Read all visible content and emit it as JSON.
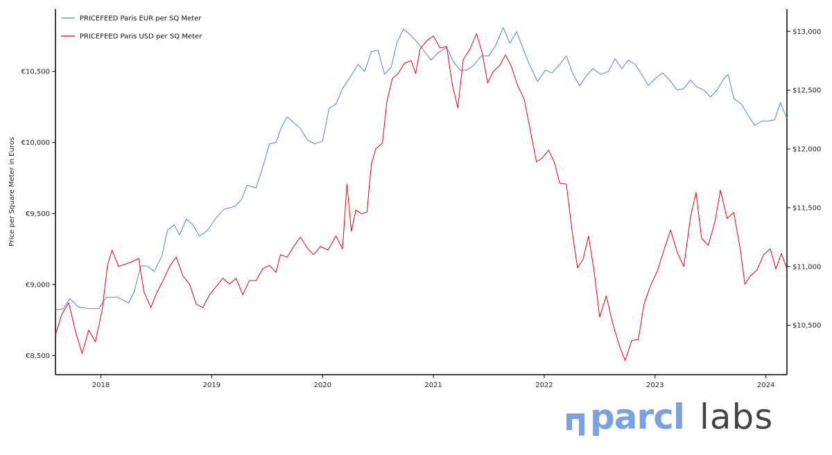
{
  "chart_data": {
    "type": "line",
    "title": "",
    "xlabel": "",
    "ylabel": "Price per Square Meter in Euros",
    "y2label": "",
    "xlim": [
      2017.59,
      2024.19
    ],
    "ylim": [
      8365,
      10940
    ],
    "y2lim": [
      10080,
      13190
    ],
    "x_ticks": [
      {
        "x": 2018,
        "label": "2018"
      },
      {
        "x": 2019,
        "label": "2019"
      },
      {
        "x": 2020,
        "label": "2020"
      },
      {
        "x": 2021,
        "label": "2021"
      },
      {
        "x": 2022,
        "label": "2022"
      },
      {
        "x": 2023,
        "label": "2023"
      },
      {
        "x": 2024,
        "label": "2024"
      }
    ],
    "y_ticks": [
      {
        "v": 8500,
        "label": "€8,500"
      },
      {
        "v": 9000,
        "label": "€9,000"
      },
      {
        "v": 9500,
        "label": "€9,500"
      },
      {
        "v": 10000,
        "label": "€10,000"
      },
      {
        "v": 10500,
        "label": "€10,500"
      }
    ],
    "y2_ticks": [
      {
        "v": 10500,
        "label": "$10,500"
      },
      {
        "v": 11000,
        "label": "$11,000"
      },
      {
        "v": 11500,
        "label": "$11,500"
      },
      {
        "v": 12000,
        "label": "$12,000"
      },
      {
        "v": 12500,
        "label": "$12,500"
      },
      {
        "v": 13000,
        "label": "$13,000"
      }
    ],
    "legend_position": "top-left",
    "grid": false,
    "series": [
      {
        "name": "PRICEFEED Paris EUR per SQ Meter",
        "axis": "left",
        "color": "#4a86d1",
        "points": [
          [
            2017.59,
            8820
          ],
          [
            2017.66,
            8830
          ],
          [
            2017.72,
            8900
          ],
          [
            2017.8,
            8840
          ],
          [
            2017.9,
            8830
          ],
          [
            2017.98,
            8830
          ],
          [
            2018.05,
            8910
          ],
          [
            2018.15,
            8910
          ],
          [
            2018.25,
            8870
          ],
          [
            2018.3,
            8950
          ],
          [
            2018.36,
            9130
          ],
          [
            2018.42,
            9130
          ],
          [
            2018.48,
            9090
          ],
          [
            2018.55,
            9200
          ],
          [
            2018.6,
            9380
          ],
          [
            2018.66,
            9420
          ],
          [
            2018.71,
            9350
          ],
          [
            2018.77,
            9460
          ],
          [
            2018.83,
            9420
          ],
          [
            2018.89,
            9340
          ],
          [
            2018.96,
            9380
          ],
          [
            2019.04,
            9470
          ],
          [
            2019.11,
            9530
          ],
          [
            2019.21,
            9550
          ],
          [
            2019.27,
            9600
          ],
          [
            2019.32,
            9700
          ],
          [
            2019.4,
            9680
          ],
          [
            2019.47,
            9850
          ],
          [
            2019.52,
            9990
          ],
          [
            2019.58,
            10000
          ],
          [
            2019.63,
            10110
          ],
          [
            2019.68,
            10180
          ],
          [
            2019.74,
            10140
          ],
          [
            2019.8,
            10100
          ],
          [
            2019.86,
            10020
          ],
          [
            2019.93,
            9990
          ],
          [
            2020.0,
            10010
          ],
          [
            2020.06,
            10240
          ],
          [
            2020.12,
            10270
          ],
          [
            2020.18,
            10380
          ],
          [
            2020.25,
            10460
          ],
          [
            2020.32,
            10550
          ],
          [
            2020.38,
            10500
          ],
          [
            2020.44,
            10640
          ],
          [
            2020.5,
            10650
          ],
          [
            2020.56,
            10480
          ],
          [
            2020.62,
            10530
          ],
          [
            2020.67,
            10700
          ],
          [
            2020.73,
            10800
          ],
          [
            2020.79,
            10760
          ],
          [
            2020.86,
            10700
          ],
          [
            2020.92,
            10640
          ],
          [
            2020.98,
            10580
          ],
          [
            2021.04,
            10630
          ],
          [
            2021.12,
            10670
          ],
          [
            2021.18,
            10570
          ],
          [
            2021.24,
            10510
          ],
          [
            2021.3,
            10510
          ],
          [
            2021.36,
            10540
          ],
          [
            2021.43,
            10610
          ],
          [
            2021.5,
            10610
          ],
          [
            2021.56,
            10680
          ],
          [
            2021.63,
            10810
          ],
          [
            2021.69,
            10700
          ],
          [
            2021.75,
            10780
          ],
          [
            2021.8,
            10680
          ],
          [
            2021.86,
            10560
          ],
          [
            2021.94,
            10430
          ],
          [
            2022.01,
            10510
          ],
          [
            2022.07,
            10490
          ],
          [
            2022.14,
            10550
          ],
          [
            2022.2,
            10610
          ],
          [
            2022.26,
            10480
          ],
          [
            2022.32,
            10400
          ],
          [
            2022.38,
            10470
          ],
          [
            2022.44,
            10520
          ],
          [
            2022.51,
            10480
          ],
          [
            2022.58,
            10500
          ],
          [
            2022.64,
            10590
          ],
          [
            2022.7,
            10520
          ],
          [
            2022.76,
            10580
          ],
          [
            2022.82,
            10550
          ],
          [
            2022.88,
            10480
          ],
          [
            2022.94,
            10400
          ],
          [
            2023.0,
            10450
          ],
          [
            2023.07,
            10490
          ],
          [
            2023.13,
            10440
          ],
          [
            2023.2,
            10370
          ],
          [
            2023.26,
            10380
          ],
          [
            2023.32,
            10440
          ],
          [
            2023.38,
            10390
          ],
          [
            2023.44,
            10370
          ],
          [
            2023.5,
            10320
          ],
          [
            2023.56,
            10370
          ],
          [
            2023.62,
            10450
          ],
          [
            2023.66,
            10480
          ],
          [
            2023.71,
            10310
          ],
          [
            2023.78,
            10270
          ],
          [
            2023.84,
            10190
          ],
          [
            2023.9,
            10120
          ],
          [
            2023.96,
            10150
          ],
          [
            2024.02,
            10150
          ],
          [
            2024.08,
            10160
          ],
          [
            2024.13,
            10280
          ],
          [
            2024.19,
            10170
          ]
        ]
      },
      {
        "name": "PRICEFEED Paris USD per SQ Meter",
        "axis": "right",
        "color": "#e8000b",
        "points": [
          [
            2017.59,
            10420
          ],
          [
            2017.65,
            10600
          ],
          [
            2017.71,
            10690
          ],
          [
            2017.77,
            10450
          ],
          [
            2017.83,
            10260
          ],
          [
            2017.89,
            10460
          ],
          [
            2017.95,
            10360
          ],
          [
            2018.01,
            10620
          ],
          [
            2018.06,
            11010
          ],
          [
            2018.1,
            11140
          ],
          [
            2018.16,
            11000
          ],
          [
            2018.22,
            11020
          ],
          [
            2018.28,
            11040
          ],
          [
            2018.34,
            11070
          ],
          [
            2018.39,
            10780
          ],
          [
            2018.45,
            10650
          ],
          [
            2018.5,
            10770
          ],
          [
            2018.56,
            10880
          ],
          [
            2018.62,
            11000
          ],
          [
            2018.68,
            11080
          ],
          [
            2018.74,
            10920
          ],
          [
            2018.8,
            10850
          ],
          [
            2018.86,
            10680
          ],
          [
            2018.92,
            10650
          ],
          [
            2018.98,
            10760
          ],
          [
            2019.04,
            10830
          ],
          [
            2019.1,
            10900
          ],
          [
            2019.16,
            10850
          ],
          [
            2019.22,
            10900
          ],
          [
            2019.28,
            10760
          ],
          [
            2019.34,
            10880
          ],
          [
            2019.4,
            10880
          ],
          [
            2019.46,
            10980
          ],
          [
            2019.52,
            11010
          ],
          [
            2019.58,
            10950
          ],
          [
            2019.62,
            11100
          ],
          [
            2019.68,
            11080
          ],
          [
            2019.74,
            11170
          ],
          [
            2019.8,
            11250
          ],
          [
            2019.86,
            11160
          ],
          [
            2019.92,
            11100
          ],
          [
            2019.98,
            11170
          ],
          [
            2020.05,
            11140
          ],
          [
            2020.12,
            11260
          ],
          [
            2020.18,
            11150
          ],
          [
            2020.22,
            11700
          ],
          [
            2020.26,
            11300
          ],
          [
            2020.3,
            11480
          ],
          [
            2020.35,
            11450
          ],
          [
            2020.4,
            11460
          ],
          [
            2020.44,
            11870
          ],
          [
            2020.48,
            12000
          ],
          [
            2020.54,
            12050
          ],
          [
            2020.58,
            12400
          ],
          [
            2020.63,
            12600
          ],
          [
            2020.68,
            12640
          ],
          [
            2020.74,
            12730
          ],
          [
            2020.8,
            12750
          ],
          [
            2020.84,
            12640
          ],
          [
            2020.88,
            12850
          ],
          [
            2020.94,
            12920
          ],
          [
            2021.0,
            12960
          ],
          [
            2021.06,
            12860
          ],
          [
            2021.12,
            12870
          ],
          [
            2021.17,
            12550
          ],
          [
            2021.22,
            12350
          ],
          [
            2021.27,
            12760
          ],
          [
            2021.33,
            12850
          ],
          [
            2021.39,
            12980
          ],
          [
            2021.44,
            12820
          ],
          [
            2021.49,
            12560
          ],
          [
            2021.54,
            12660
          ],
          [
            2021.6,
            12710
          ],
          [
            2021.65,
            12800
          ],
          [
            2021.7,
            12710
          ],
          [
            2021.76,
            12540
          ],
          [
            2021.82,
            12420
          ],
          [
            2021.88,
            12130
          ],
          [
            2021.93,
            11890
          ],
          [
            2021.98,
            11920
          ],
          [
            2022.04,
            11990
          ],
          [
            2022.09,
            11890
          ],
          [
            2022.14,
            11710
          ],
          [
            2022.2,
            11700
          ],
          [
            2022.25,
            11310
          ],
          [
            2022.3,
            10990
          ],
          [
            2022.35,
            11060
          ],
          [
            2022.4,
            11260
          ],
          [
            2022.45,
            10960
          ],
          [
            2022.5,
            10570
          ],
          [
            2022.56,
            10750
          ],
          [
            2022.62,
            10510
          ],
          [
            2022.68,
            10320
          ],
          [
            2022.73,
            10200
          ],
          [
            2022.79,
            10370
          ],
          [
            2022.85,
            10380
          ],
          [
            2022.9,
            10680
          ],
          [
            2022.96,
            10840
          ],
          [
            2023.02,
            10960
          ],
          [
            2023.08,
            11140
          ],
          [
            2023.14,
            11310
          ],
          [
            2023.2,
            11120
          ],
          [
            2023.26,
            11000
          ],
          [
            2023.32,
            11420
          ],
          [
            2023.37,
            11630
          ],
          [
            2023.42,
            11240
          ],
          [
            2023.48,
            11180
          ],
          [
            2023.54,
            11380
          ],
          [
            2023.59,
            11650
          ],
          [
            2023.65,
            11410
          ],
          [
            2023.71,
            11460
          ],
          [
            2023.77,
            11140
          ],
          [
            2023.81,
            10850
          ],
          [
            2023.86,
            10920
          ],
          [
            2023.92,
            10970
          ],
          [
            2023.98,
            11100
          ],
          [
            2024.04,
            11150
          ],
          [
            2024.09,
            10980
          ],
          [
            2024.14,
            11110
          ],
          [
            2024.19,
            10980
          ]
        ]
      }
    ]
  },
  "logo": {
    "brand": "parcl",
    "suffix": "labs"
  }
}
